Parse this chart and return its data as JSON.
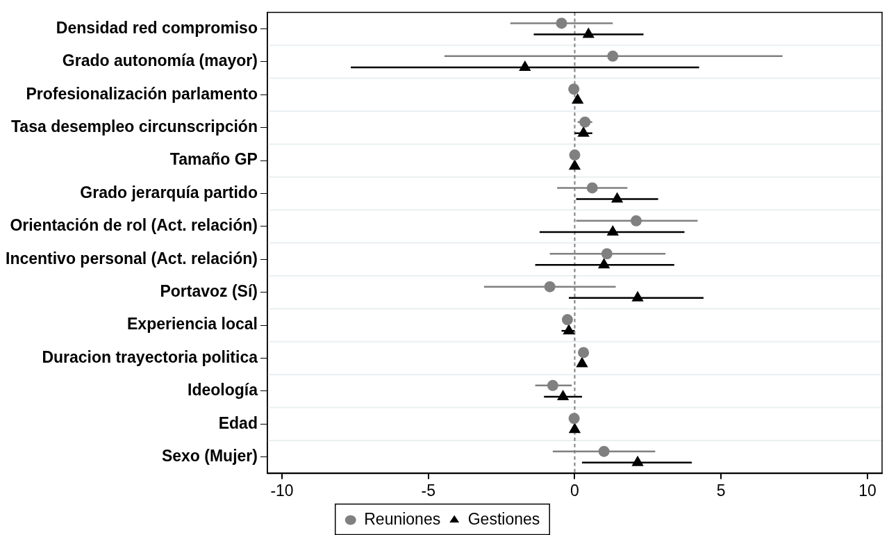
{
  "chart_data": {
    "type": "scatter",
    "orientation": "horizontal",
    "categories": [
      "Densidad red compromiso",
      "Grado autonomía (mayor)",
      "Profesionalización parlamento",
      "Tasa desempleo circunscripción",
      "Tamaño GP",
      "Grado jerarquía partido",
      "Orientación de rol (Act. relación)",
      "Incentivo personal (Act. relación)",
      "Portavoz (Sí)",
      "Experiencia local",
      "Duracion trayectoria politica",
      "Ideología",
      "Edad",
      "Sexo (Mujer)"
    ],
    "series": [
      {
        "name": "Reuniones",
        "color": "#808080",
        "marker": "circle",
        "values": [
          -0.45,
          1.3,
          -0.03,
          0.35,
          0,
          0.6,
          2.1,
          1.1,
          -0.85,
          -0.25,
          0.3,
          -0.75,
          -0.02,
          1.0
        ],
        "errors": [
          [
            -2.2,
            1.3
          ],
          [
            -4.45,
            7.1
          ],
          null,
          [
            0.1,
            0.6
          ],
          null,
          [
            -0.6,
            1.8
          ],
          [
            0.05,
            4.2
          ],
          [
            -0.85,
            3.1
          ],
          [
            -3.1,
            1.4
          ],
          null,
          null,
          [
            -1.35,
            -0.1
          ],
          null,
          [
            -0.75,
            2.75
          ]
        ]
      },
      {
        "name": "Gestiones",
        "color": "#000000",
        "marker": "triangle",
        "values": [
          0.47,
          -1.7,
          0.1,
          0.3,
          0,
          1.45,
          1.3,
          1.0,
          2.15,
          -0.2,
          0.25,
          -0.4,
          0,
          2.15
        ],
        "errors": [
          [
            -1.4,
            2.35
          ],
          [
            -7.65,
            4.25
          ],
          null,
          [
            0.0,
            0.6
          ],
          null,
          [
            0.05,
            2.85
          ],
          [
            -1.2,
            3.75
          ],
          [
            -1.35,
            3.4
          ],
          [
            -0.2,
            4.4
          ],
          [
            -0.45,
            0.0
          ],
          null,
          [
            -1.05,
            0.25
          ],
          null,
          [
            0.25,
            4.0
          ]
        ]
      }
    ],
    "xlim": [
      -10.5,
      10.5
    ],
    "xticks": [
      -10,
      -5,
      0,
      5,
      10
    ],
    "ref_lines": [
      {
        "axis": "x",
        "value": 0,
        "color": "#808080",
        "line_style": "dashed"
      }
    ],
    "grid": "y",
    "legend": "bottom"
  }
}
